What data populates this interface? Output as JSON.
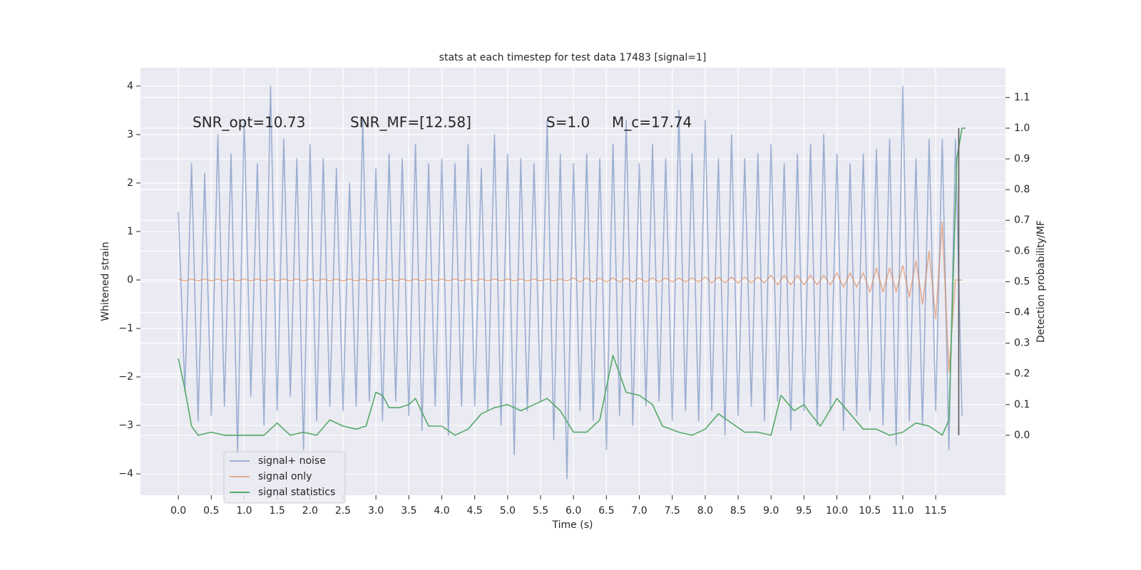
{
  "chart_data": {
    "type": "line",
    "title": "stats at each timestep for test data 17483 [signal=1]",
    "xlabel": "Time (s)",
    "ylabel": "Whitened strain",
    "y2label": "Detection probability/MF",
    "annotations": [
      "SNR_opt=10.73",
      "SNR_MF=[12.58]",
      "S=1.0",
      "M_c=17.74"
    ],
    "xlim": [
      -0.575,
      12.56
    ],
    "ylim": [
      -4.44,
      4.38
    ],
    "y2lim": [
      -0.195,
      1.197
    ],
    "xticks": [
      {
        "value": 0,
        "label": "0.0"
      },
      0.5,
      {
        "value": 1,
        "label": "1.0"
      },
      1.5,
      {
        "value": 2,
        "label": "2.0"
      },
      2.5,
      {
        "value": 3,
        "label": "3.0"
      },
      3.5,
      {
        "value": 4,
        "label": "4.0"
      },
      4.5,
      {
        "value": 5,
        "label": "5.0"
      },
      5.5,
      {
        "value": 6,
        "label": "6.0"
      },
      6.5,
      {
        "value": 7,
        "label": "7.0"
      },
      7.5,
      {
        "value": 8,
        "label": "8.0"
      },
      8.5,
      {
        "value": 9,
        "label": "9.0"
      },
      9.5,
      {
        "value": 10,
        "label": "10.0"
      },
      10.5,
      {
        "value": 11,
        "label": "11.0"
      },
      11.5
    ],
    "yticks": [
      {
        "value": -4,
        "label": "−4"
      },
      {
        "value": -3,
        "label": "−3"
      },
      {
        "value": -2,
        "label": "−2"
      },
      {
        "value": -1,
        "label": "−1"
      },
      0,
      1,
      2,
      3,
      4
    ],
    "y2ticks": [
      {
        "value": 0,
        "label": "0.0"
      },
      0.1,
      0.2,
      0.3,
      0.4,
      0.5,
      0.6,
      0.7,
      0.8,
      0.9,
      {
        "value": 1,
        "label": "1.0"
      },
      1.1
    ],
    "grid": true,
    "legend": "lower left",
    "x": [
      0.0,
      0.1,
      0.2,
      0.3,
      0.4,
      0.5,
      0.6,
      0.7,
      0.8,
      0.9,
      1.0,
      1.1,
      1.2,
      1.3,
      1.4,
      1.5,
      1.6,
      1.7,
      1.8,
      1.9,
      2.0,
      2.1,
      2.2,
      2.3,
      2.4,
      2.5,
      2.6,
      2.7,
      2.8,
      2.9,
      3.0,
      3.1,
      3.2,
      3.3,
      3.4,
      3.5,
      3.6,
      3.7,
      3.8,
      3.9,
      4.0,
      4.1,
      4.2,
      4.3,
      4.4,
      4.5,
      4.6,
      4.7,
      4.8,
      4.9,
      5.0,
      5.1,
      5.2,
      5.3,
      5.4,
      5.5,
      5.6,
      5.7,
      5.8,
      5.9,
      6.0,
      6.1,
      6.2,
      6.3,
      6.4,
      6.5,
      6.6,
      6.7,
      6.8,
      6.9,
      7.0,
      7.1,
      7.2,
      7.3,
      7.4,
      7.5,
      7.6,
      7.7,
      7.8,
      7.9,
      8.0,
      8.1,
      8.2,
      8.3,
      8.4,
      8.5,
      8.6,
      8.7,
      8.8,
      8.9,
      9.0,
      9.1,
      9.2,
      9.3,
      9.4,
      9.5,
      9.6,
      9.7,
      9.8,
      9.9,
      10.0,
      10.1,
      10.2,
      10.3,
      10.4,
      10.5,
      10.6,
      10.7,
      10.8,
      10.9,
      11.0,
      11.1,
      11.2,
      11.3,
      11.4,
      11.5,
      11.6,
      11.7,
      11.8,
      11.9
    ],
    "series": [
      {
        "name": "signal+ noise",
        "color": "#4c72b0",
        "alpha": 0.5,
        "values": [
          1.4,
          -2.3,
          2.4,
          -2.9,
          2.2,
          -2.8,
          3.0,
          -2.6,
          2.6,
          -3.6,
          3.3,
          -2.4,
          2.4,
          -3.0,
          4.0,
          -2.7,
          2.9,
          -2.4,
          2.5,
          -3.5,
          2.8,
          -2.9,
          2.5,
          -2.6,
          2.3,
          -2.7,
          2.0,
          -2.6,
          3.3,
          -2.5,
          2.3,
          -2.9,
          2.6,
          -2.5,
          2.5,
          -2.8,
          2.8,
          -3.1,
          2.4,
          -2.6,
          2.5,
          -3.2,
          2.4,
          -2.6,
          2.8,
          -2.6,
          2.3,
          -2.7,
          3.0,
          -3.0,
          2.6,
          -3.6,
          2.5,
          -2.7,
          2.4,
          -2.5,
          3.3,
          -3.3,
          2.6,
          -4.1,
          2.4,
          -2.7,
          2.6,
          -2.9,
          2.5,
          -3.5,
          2.8,
          -2.8,
          3.3,
          -3.0,
          2.4,
          -2.6,
          2.8,
          -2.5,
          2.5,
          -2.9,
          3.5,
          -2.7,
          2.6,
          -2.9,
          3.3,
          -2.7,
          2.5,
          -3.2,
          3.0,
          -2.8,
          2.5,
          -2.6,
          2.6,
          -2.9,
          2.8,
          -2.5,
          2.4,
          -3.1,
          2.6,
          -2.7,
          2.8,
          -3.0,
          3.0,
          -2.7,
          2.6,
          -3.1,
          2.4,
          -2.8,
          2.6,
          -2.7,
          2.7,
          -3.0,
          2.9,
          -3.4,
          4.0,
          -2.9,
          2.5,
          -3.0,
          2.9,
          -2.7,
          2.9,
          -3.5,
          2.9,
          -2.8
        ]
      },
      {
        "name": "signal only",
        "color": "#dd8452",
        "alpha": 0.6,
        "values": [
          0.02,
          -0.02,
          0.02,
          -0.02,
          0.02,
          -0.02,
          0.02,
          -0.02,
          0.02,
          -0.02,
          0.02,
          -0.02,
          0.02,
          -0.02,
          0.02,
          -0.02,
          0.02,
          -0.02,
          0.02,
          -0.02,
          0.02,
          -0.02,
          0.02,
          -0.02,
          0.02,
          -0.02,
          0.02,
          -0.02,
          0.02,
          -0.02,
          0.02,
          -0.02,
          0.02,
          -0.02,
          0.02,
          -0.02,
          0.02,
          -0.02,
          0.02,
          -0.02,
          0.02,
          -0.02,
          0.02,
          -0.02,
          0.02,
          -0.02,
          0.02,
          -0.02,
          0.02,
          -0.02,
          0.02,
          -0.02,
          0.02,
          -0.02,
          0.02,
          -0.02,
          0.02,
          -0.02,
          0.02,
          -0.02,
          0.04,
          -0.04,
          0.04,
          -0.04,
          0.04,
          -0.04,
          0.04,
          -0.04,
          0.04,
          -0.04,
          0.04,
          -0.04,
          0.04,
          -0.04,
          0.04,
          -0.04,
          0.04,
          -0.04,
          0.04,
          -0.04,
          0.06,
          -0.06,
          0.06,
          -0.06,
          0.06,
          -0.06,
          0.06,
          -0.06,
          0.06,
          -0.06,
          0.1,
          -0.1,
          0.1,
          -0.1,
          0.1,
          -0.1,
          0.1,
          -0.1,
          0.1,
          -0.1,
          0.15,
          -0.15,
          0.15,
          -0.15,
          0.15,
          -0.25,
          0.25,
          -0.25,
          0.25,
          -0.25,
          0.3,
          -0.35,
          0.4,
          -0.5,
          0.6,
          -0.8,
          1.2,
          -1.9,
          0,
          0
        ]
      },
      {
        "name": "signal statistics",
        "color": "#55a868",
        "alpha": 1,
        "axis": "y2",
        "x": [
          0.0,
          0.1,
          0.2,
          0.3,
          0.5,
          0.7,
          1.0,
          1.3,
          1.5,
          1.7,
          1.9,
          2.1,
          2.3,
          2.5,
          2.7,
          2.85,
          3.0,
          3.1,
          3.2,
          3.35,
          3.5,
          3.6,
          3.8,
          4.0,
          4.2,
          4.4,
          4.6,
          4.8,
          5.0,
          5.2,
          5.4,
          5.6,
          5.8,
          6.0,
          6.2,
          6.4,
          6.6,
          6.8,
          7.0,
          7.2,
          7.35,
          7.6,
          7.8,
          8.0,
          8.2,
          8.4,
          8.6,
          8.8,
          9.0,
          9.15,
          9.35,
          9.5,
          9.6,
          9.75,
          10.0,
          10.2,
          10.4,
          10.6,
          10.8,
          11.0,
          11.2,
          11.4,
          11.6,
          11.7,
          11.75,
          11.82,
          11.9,
          11.95
        ],
        "values": [
          0.25,
          0.15,
          0.03,
          0.0,
          0.01,
          0.0,
          0.0,
          0.0,
          0.04,
          0.0,
          0.01,
          0.0,
          0.05,
          0.03,
          0.02,
          0.03,
          0.14,
          0.13,
          0.09,
          0.09,
          0.1,
          0.12,
          0.03,
          0.03,
          0.0,
          0.02,
          0.07,
          0.09,
          0.1,
          0.08,
          0.1,
          0.12,
          0.08,
          0.01,
          0.01,
          0.05,
          0.26,
          0.14,
          0.13,
          0.1,
          0.03,
          0.01,
          0.0,
          0.02,
          0.07,
          0.04,
          0.01,
          0.01,
          0.0,
          0.13,
          0.08,
          0.1,
          0.07,
          0.03,
          0.12,
          0.07,
          0.02,
          0.02,
          0.0,
          0.01,
          0.04,
          0.03,
          0.0,
          0.05,
          0.4,
          0.9,
          1.0,
          1.0
        ]
      }
    ],
    "vline": {
      "x": 11.85,
      "ymin": 0,
      "ymax": 1.0,
      "color": "#555555"
    }
  }
}
